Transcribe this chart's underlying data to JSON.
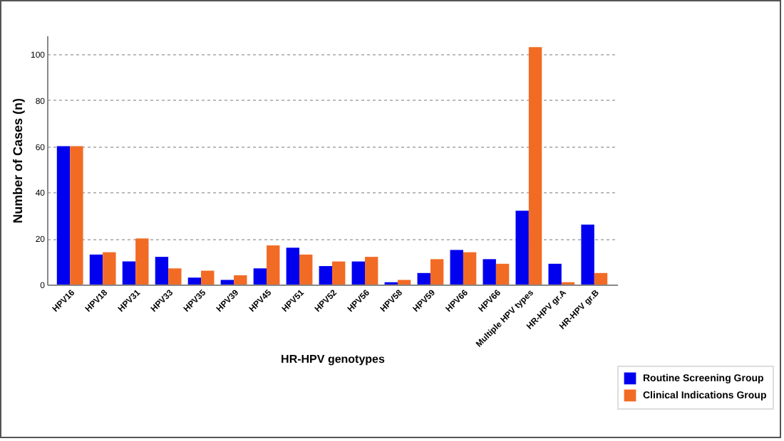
{
  "chart_data": {
    "type": "bar",
    "xlabel": "HR-HPV genotypes",
    "ylabel": "Number of Cases (n)",
    "categories": [
      "HPV16",
      "HPV18",
      "HPV31",
      "HPV33",
      "HPV35",
      "HPV39",
      "HPV45",
      "HPV51",
      "HPV52",
      "HPV56",
      "HPV58",
      "HPV59",
      "HPV66",
      "HPV66",
      "Multiple HPV types",
      "HR-HPV gr.A",
      "HR-HPV gr.B"
    ],
    "series": [
      {
        "name": "Routine Screening Group",
        "color": "#0000ee",
        "values": [
          60,
          13,
          10,
          12,
          3,
          2,
          7,
          16,
          8,
          10,
          1,
          5,
          15,
          11,
          32,
          9,
          26
        ]
      },
      {
        "name": "Clinical Indications Group",
        "color": "#f26b25",
        "values": [
          60,
          14,
          20,
          7,
          6,
          4,
          17,
          13,
          10,
          12,
          2,
          11,
          14,
          9,
          103,
          1,
          5
        ]
      }
    ],
    "ylim": [
      0,
      108
    ],
    "yticks": [
      0,
      20,
      40,
      60,
      80,
      100
    ],
    "grid": "y",
    "legend": "bottom right"
  }
}
